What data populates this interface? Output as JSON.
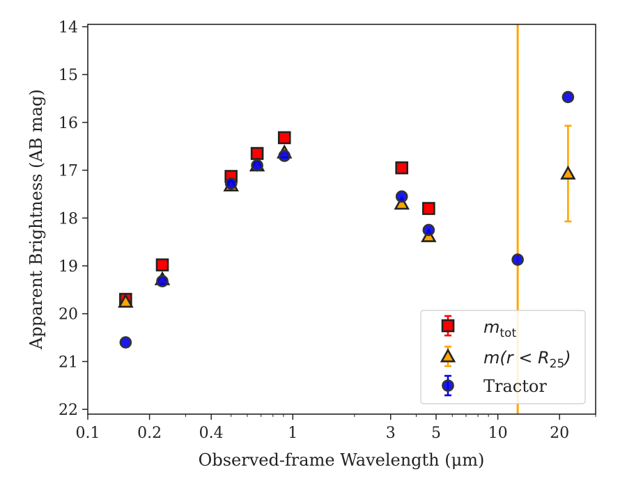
{
  "chart_data": {
    "type": "scatter",
    "xlabel": "Observed-frame Wavelength (μm)",
    "ylabel": "Apparent Brightness (AB mag)",
    "x_scale": "log",
    "xlim": [
      0.1,
      30
    ],
    "ylim": [
      22.1,
      13.95
    ],
    "y_inverted": true,
    "x_ticks": [
      0.1,
      0.2,
      0.4,
      1,
      3,
      5,
      10,
      20
    ],
    "x_tick_labels": [
      "0.1",
      "0.2",
      "0.4",
      "1",
      "3",
      "5",
      "10",
      "20"
    ],
    "y_ticks": [
      14,
      15,
      16,
      17,
      18,
      19,
      20,
      21,
      22
    ],
    "y_tick_labels": [
      "14",
      "15",
      "16",
      "17",
      "18",
      "19",
      "20",
      "21",
      "22"
    ],
    "grid": false,
    "legend_position": "bottom-right",
    "vertical_line": {
      "x": 12.5,
      "color": "#ffa500"
    },
    "series": [
      {
        "name": "m_tot",
        "legend_main": "m",
        "legend_sub": "tot",
        "marker": "square",
        "color": "#ff0000",
        "edge_color": "#222222",
        "points": [
          {
            "x": 0.153,
            "y": 19.7,
            "err": 0.05
          },
          {
            "x": 0.231,
            "y": 18.98,
            "err": 0.05
          },
          {
            "x": 0.5,
            "y": 17.13,
            "err": 0.05
          },
          {
            "x": 0.67,
            "y": 16.65,
            "err": 0.05
          },
          {
            "x": 0.91,
            "y": 16.32,
            "err": 0.05
          },
          {
            "x": 3.4,
            "y": 16.95,
            "err": 0.05
          },
          {
            "x": 4.6,
            "y": 17.8,
            "err": 0.05
          }
        ]
      },
      {
        "name": "m(r < R25)",
        "legend_main": "m(r < R",
        "legend_sub": "25",
        "legend_close": ")",
        "marker": "triangle",
        "color": "#ffa500",
        "edge_color": "#222222",
        "points": [
          {
            "x": 0.153,
            "y": 19.75,
            "err": 0.05
          },
          {
            "x": 0.231,
            "y": 19.28,
            "err": 0.05
          },
          {
            "x": 0.5,
            "y": 17.32,
            "err": 0.05
          },
          {
            "x": 0.67,
            "y": 16.9,
            "err": 0.05
          },
          {
            "x": 0.91,
            "y": 16.63,
            "err": 0.05
          },
          {
            "x": 3.4,
            "y": 17.7,
            "err": 0.05
          },
          {
            "x": 4.6,
            "y": 18.38,
            "err": 0.05
          },
          {
            "x": 22,
            "y": 17.07,
            "err": 1.0
          }
        ]
      },
      {
        "name": "Tractor",
        "legend_main": "Tractor",
        "marker": "circle",
        "color": "#0000ee",
        "edge_color": "#333333",
        "points": [
          {
            "x": 0.153,
            "y": 20.6,
            "err": 0.05
          },
          {
            "x": 0.231,
            "y": 19.32,
            "err": 0.05
          },
          {
            "x": 0.5,
            "y": 17.28,
            "err": 0.05
          },
          {
            "x": 0.67,
            "y": 16.9,
            "err": 0.05
          },
          {
            "x": 0.91,
            "y": 16.7,
            "err": 0.05
          },
          {
            "x": 3.4,
            "y": 17.55,
            "err": 0.05
          },
          {
            "x": 4.6,
            "y": 18.25,
            "err": 0.07
          },
          {
            "x": 12.5,
            "y": 18.87,
            "err": 0.05
          },
          {
            "x": 22,
            "y": 15.47,
            "err": 0.05
          }
        ]
      }
    ]
  }
}
